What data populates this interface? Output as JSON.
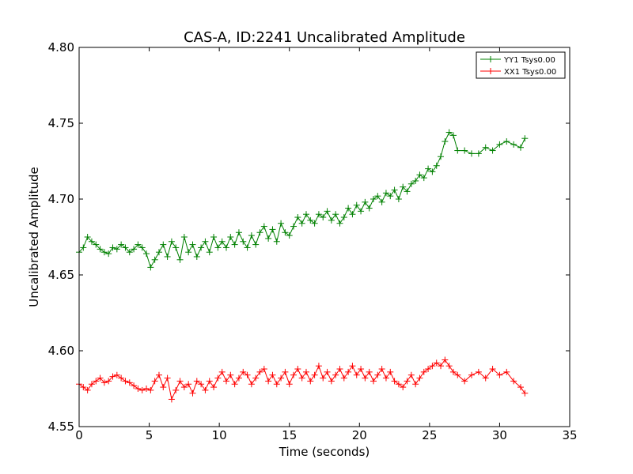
{
  "chart_data": {
    "type": "line",
    "title": "CAS-A, ID:2241 Uncalibrated Amplitude",
    "xlabel": "Time (seconds)",
    "ylabel": "Uncalibrated Amplitude",
    "xlim": [
      0,
      35
    ],
    "ylim": [
      4.55,
      4.8
    ],
    "xticks": [
      "0",
      "5",
      "10",
      "15",
      "20",
      "25",
      "30",
      "35"
    ],
    "yticks": [
      "4.55",
      "4.60",
      "4.65",
      "4.70",
      "4.75",
      "4.80"
    ],
    "grid": false,
    "legend_position": "top-right",
    "marker": "+",
    "series": [
      {
        "name": "YY1 Tsys0.00",
        "color": "#008000",
        "x": [
          0.0,
          0.3,
          0.6,
          0.9,
          1.2,
          1.5,
          1.8,
          2.1,
          2.4,
          2.7,
          3.0,
          3.3,
          3.6,
          3.9,
          4.2,
          4.5,
          4.8,
          5.1,
          5.4,
          5.7,
          6.0,
          6.3,
          6.6,
          6.9,
          7.2,
          7.5,
          7.8,
          8.1,
          8.4,
          8.7,
          9.0,
          9.3,
          9.6,
          9.9,
          10.2,
          10.5,
          10.8,
          11.1,
          11.4,
          11.7,
          12.0,
          12.3,
          12.6,
          12.9,
          13.2,
          13.5,
          13.8,
          14.1,
          14.4,
          14.7,
          15.0,
          15.3,
          15.6,
          15.9,
          16.2,
          16.5,
          16.8,
          17.1,
          17.4,
          17.7,
          18.0,
          18.3,
          18.6,
          18.9,
          19.2,
          19.5,
          19.8,
          20.1,
          20.4,
          20.7,
          21.0,
          21.3,
          21.6,
          21.9,
          22.2,
          22.5,
          22.8,
          23.1,
          23.4,
          23.7,
          24.0,
          24.3,
          24.6,
          24.9,
          25.2,
          25.5,
          25.8,
          26.1,
          26.4,
          26.7,
          27.0,
          27.5,
          28.0,
          28.5,
          29.0,
          29.5,
          30.0,
          30.5,
          31.0,
          31.5,
          31.8
        ],
        "values": [
          4.665,
          4.668,
          4.675,
          4.672,
          4.67,
          4.667,
          4.665,
          4.664,
          4.668,
          4.667,
          4.67,
          4.668,
          4.665,
          4.667,
          4.67,
          4.668,
          4.664,
          4.655,
          4.66,
          4.665,
          4.67,
          4.662,
          4.672,
          4.668,
          4.66,
          4.675,
          4.665,
          4.67,
          4.662,
          4.668,
          4.672,
          4.665,
          4.675,
          4.668,
          4.672,
          4.668,
          4.675,
          4.67,
          4.678,
          4.672,
          4.668,
          4.676,
          4.67,
          4.678,
          4.682,
          4.674,
          4.68,
          4.672,
          4.684,
          4.678,
          4.676,
          4.682,
          4.688,
          4.684,
          4.69,
          4.686,
          4.684,
          4.69,
          4.688,
          4.692,
          4.686,
          4.69,
          4.684,
          4.688,
          4.694,
          4.69,
          4.696,
          4.692,
          4.698,
          4.694,
          4.7,
          4.702,
          4.698,
          4.704,
          4.702,
          4.706,
          4.7,
          4.708,
          4.705,
          4.71,
          4.712,
          4.716,
          4.714,
          4.72,
          4.718,
          4.722,
          4.728,
          4.738,
          4.744,
          4.742,
          4.732,
          4.732,
          4.73,
          4.73,
          4.734,
          4.732,
          4.736,
          4.738,
          4.736,
          4.734,
          4.74
        ]
      },
      {
        "name": "XX1 Tsys0.00",
        "color": "#ff0000",
        "x": [
          0.0,
          0.3,
          0.6,
          0.9,
          1.2,
          1.5,
          1.8,
          2.1,
          2.4,
          2.7,
          3.0,
          3.3,
          3.6,
          3.9,
          4.2,
          4.5,
          4.8,
          5.1,
          5.4,
          5.7,
          6.0,
          6.3,
          6.6,
          6.9,
          7.2,
          7.5,
          7.8,
          8.1,
          8.4,
          8.7,
          9.0,
          9.3,
          9.6,
          9.9,
          10.2,
          10.5,
          10.8,
          11.1,
          11.4,
          11.7,
          12.0,
          12.3,
          12.6,
          12.9,
          13.2,
          13.5,
          13.8,
          14.1,
          14.4,
          14.7,
          15.0,
          15.3,
          15.6,
          15.9,
          16.2,
          16.5,
          16.8,
          17.1,
          17.4,
          17.7,
          18.0,
          18.3,
          18.6,
          18.9,
          19.2,
          19.5,
          19.8,
          20.1,
          20.4,
          20.7,
          21.0,
          21.3,
          21.6,
          21.9,
          22.2,
          22.5,
          22.8,
          23.1,
          23.4,
          23.7,
          24.0,
          24.3,
          24.6,
          24.9,
          25.2,
          25.5,
          25.8,
          26.1,
          26.4,
          26.7,
          27.0,
          27.5,
          28.0,
          28.5,
          29.0,
          29.5,
          30.0,
          30.5,
          31.0,
          31.5,
          31.8
        ],
        "values": [
          4.578,
          4.576,
          4.574,
          4.578,
          4.58,
          4.582,
          4.579,
          4.58,
          4.583,
          4.584,
          4.582,
          4.58,
          4.579,
          4.577,
          4.575,
          4.574,
          4.575,
          4.574,
          4.58,
          4.584,
          4.576,
          4.582,
          4.568,
          4.574,
          4.58,
          4.576,
          4.578,
          4.572,
          4.58,
          4.578,
          4.574,
          4.58,
          4.576,
          4.582,
          4.586,
          4.58,
          4.584,
          4.578,
          4.582,
          4.586,
          4.584,
          4.578,
          4.582,
          4.586,
          4.588,
          4.58,
          4.584,
          4.578,
          4.582,
          4.586,
          4.578,
          4.584,
          4.588,
          4.582,
          4.586,
          4.58,
          4.584,
          4.59,
          4.582,
          4.586,
          4.58,
          4.584,
          4.588,
          4.582,
          4.586,
          4.59,
          4.584,
          4.588,
          4.582,
          4.586,
          4.58,
          4.584,
          4.588,
          4.582,
          4.586,
          4.58,
          4.578,
          4.576,
          4.58,
          4.584,
          4.578,
          4.582,
          4.586,
          4.588,
          4.59,
          4.592,
          4.59,
          4.594,
          4.59,
          4.586,
          4.584,
          4.58,
          4.584,
          4.586,
          4.582,
          4.588,
          4.584,
          4.586,
          4.58,
          4.576,
          4.572
        ]
      }
    ]
  }
}
